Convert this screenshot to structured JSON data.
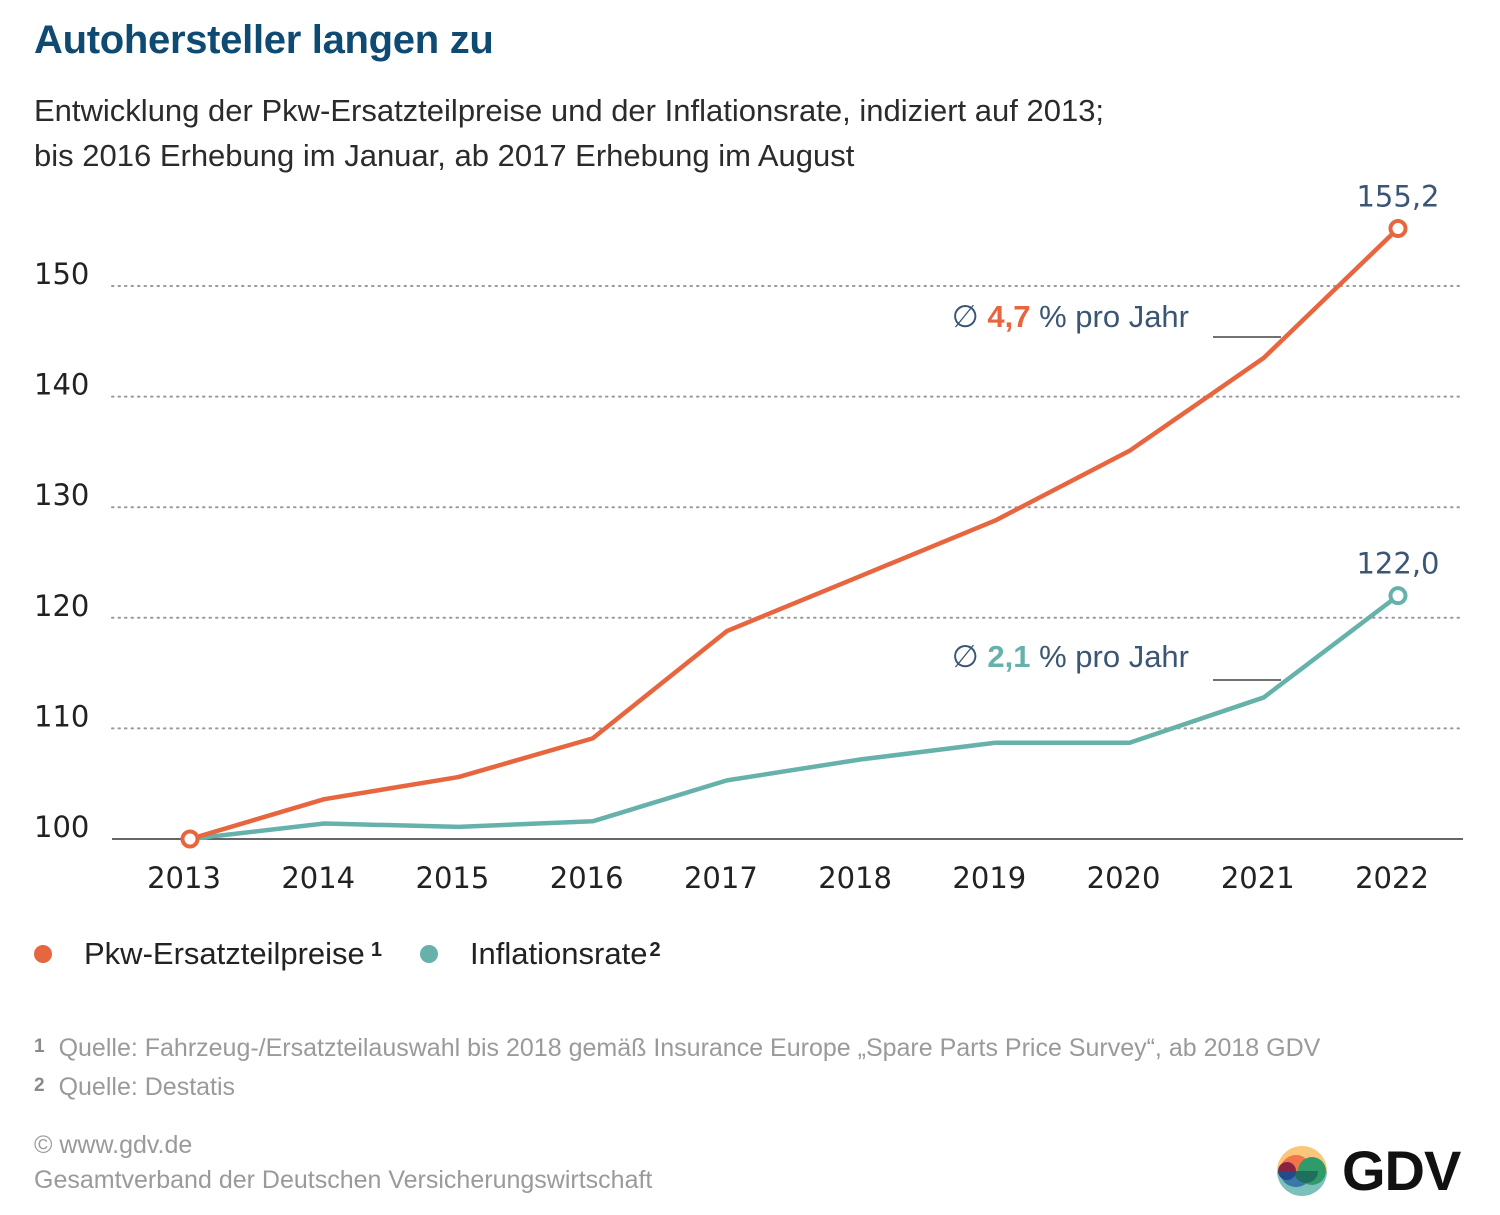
{
  "header": {
    "title": "Autohersteller langen zu",
    "subtitle_line1": "Entwicklung der Pkw-Ersatzteilpreise und der Inflationsrate, indiziert auf 2013;",
    "subtitle_line2": "bis 2016 Erhebung im Januar, ab 2017 Erhebung im August"
  },
  "colors": {
    "spare_parts": "#e8663f",
    "inflation": "#66b2aa",
    "title": "#0f4a73",
    "annotation": "#3b5675"
  },
  "chart_data": {
    "type": "line",
    "title": "Autohersteller langen zu",
    "subtitle": "Entwicklung der Pkw-Ersatzteilpreise und der Inflationsrate, indiziert auf 2013; bis 2016 Erhebung im Januar, ab 2017 Erhebung im August",
    "xlabel": "",
    "ylabel": "",
    "x": [
      "2013",
      "2014",
      "2015",
      "2016",
      "2017",
      "2018",
      "2019",
      "2020",
      "2021",
      "2022"
    ],
    "ylim": [
      100,
      155.2
    ],
    "yticks": [
      "100",
      "110",
      "120",
      "130",
      "140",
      "150"
    ],
    "ytick_values": [
      100,
      110,
      120,
      130,
      140,
      150
    ],
    "grid": "horizontal dotted",
    "legend_position": "bottom-left",
    "series": [
      {
        "name": "Pkw-Ersatzteilpreise",
        "footnote": "1",
        "color": "#e8663f",
        "values": [
          100,
          103.6,
          105.6,
          109.1,
          118.8,
          123.8,
          128.8,
          135.1,
          143.5,
          155.2
        ],
        "end_label": "155,2",
        "avg_label": {
          "symbol": "∅",
          "value": "4,7",
          "unit": "% pro Jahr"
        }
      },
      {
        "name": "Inflationsrate",
        "footnote": "2",
        "color": "#66b2aa",
        "values": [
          100,
          101.4,
          101.1,
          101.6,
          105.3,
          107.2,
          108.7,
          108.7,
          112.8,
          122.0
        ],
        "end_label": "122,0",
        "avg_label": {
          "symbol": "∅",
          "value": "2,1",
          "unit": "% pro Jahr"
        }
      }
    ]
  },
  "legend": {
    "items": [
      {
        "label": "Pkw-Ersatzteilpreise",
        "sup": "1"
      },
      {
        "label": "Inflationsrate",
        "sup": "2"
      }
    ]
  },
  "footnotes": [
    {
      "num": "1",
      "text": "Quelle: Fahrzeug-/Ersatzteilauswahl bis 2018 gemäß Insurance Europe „Spare Parts Price Survey“, ab 2018 GDV"
    },
    {
      "num": "2",
      "text": "Quelle: Destatis"
    }
  ],
  "credits": {
    "copyright": "© www.gdv.de",
    "organization": "Gesamtverband der Deutschen Versicherungswirtschaft"
  },
  "logo": {
    "text": "GDV"
  }
}
